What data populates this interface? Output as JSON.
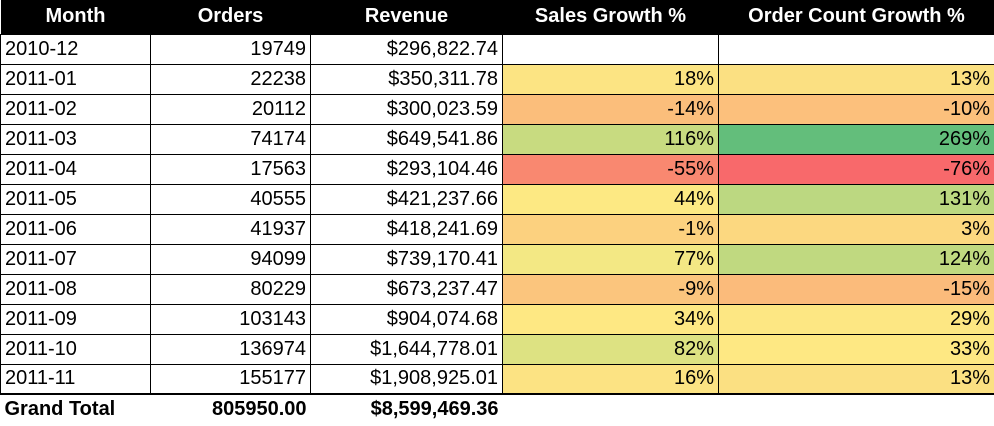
{
  "headers": [
    "Month",
    "Orders",
    "Revenue",
    "Sales Growth %",
    "Order Count Growth %"
  ],
  "rows": [
    {
      "month": "2010-12",
      "orders": "19749",
      "revenue": "$296,822.74",
      "sales_growth": "",
      "order_growth": "",
      "sales_color": "#ffffff",
      "order_color": "#ffffff"
    },
    {
      "month": "2011-01",
      "orders": "22238",
      "revenue": "$350,311.78",
      "sales_growth": "18%",
      "order_growth": "13%",
      "sales_color": "#fce483",
      "order_color": "#fbe082"
    },
    {
      "month": "2011-02",
      "orders": "20112",
      "revenue": "$300,023.59",
      "sales_growth": "-14%",
      "order_growth": "-10%",
      "sales_color": "#fbbe7b",
      "order_color": "#fcc07c"
    },
    {
      "month": "2011-03",
      "orders": "74174",
      "revenue": "$649,541.86",
      "sales_growth": "116%",
      "order_growth": "269%",
      "sales_color": "#c8db80",
      "order_color": "#63be7b"
    },
    {
      "month": "2011-04",
      "orders": "17563",
      "revenue": "$293,104.46",
      "sales_growth": "-55%",
      "order_growth": "-76%",
      "sales_color": "#f98870",
      "order_color": "#f8696b"
    },
    {
      "month": "2011-05",
      "orders": "40555",
      "revenue": "$421,237.66",
      "sales_growth": "44%",
      "order_growth": "131%",
      "sales_color": "#fde983",
      "order_color": "#bcd881"
    },
    {
      "month": "2011-06",
      "orders": "41937",
      "revenue": "$418,241.69",
      "sales_growth": "-1%",
      "order_growth": "3%",
      "sales_color": "#fcd17f",
      "order_color": "#fcd880"
    },
    {
      "month": "2011-07",
      "orders": "94099",
      "revenue": "$739,170.41",
      "sales_growth": "77%",
      "order_growth": "124%",
      "sales_color": "#f3e884",
      "order_color": "#c0d980"
    },
    {
      "month": "2011-08",
      "orders": "80229",
      "revenue": "$673,237.47",
      "sales_growth": "-9%",
      "order_growth": "-15%",
      "sales_color": "#fbc57d",
      "order_color": "#fbbb7b"
    },
    {
      "month": "2011-09",
      "orders": "103143",
      "revenue": "$904,074.68",
      "sales_growth": "34%",
      "order_growth": "29%",
      "sales_color": "#fee883",
      "order_color": "#fde783"
    },
    {
      "month": "2011-10",
      "orders": "136974",
      "revenue": "$1,644,778.01",
      "sales_growth": "82%",
      "order_growth": "33%",
      "sales_color": "#dde282",
      "order_color": "#fee883"
    },
    {
      "month": "2011-11",
      "orders": "155177",
      "revenue": "$1,908,925.01",
      "sales_growth": "16%",
      "order_growth": "13%",
      "sales_color": "#fce383",
      "order_color": "#fbe082"
    }
  ],
  "total": {
    "label": "Grand Total",
    "orders": "805950.00",
    "revenue": "$8,599,469.36",
    "sales_growth": "",
    "order_growth": ""
  }
}
